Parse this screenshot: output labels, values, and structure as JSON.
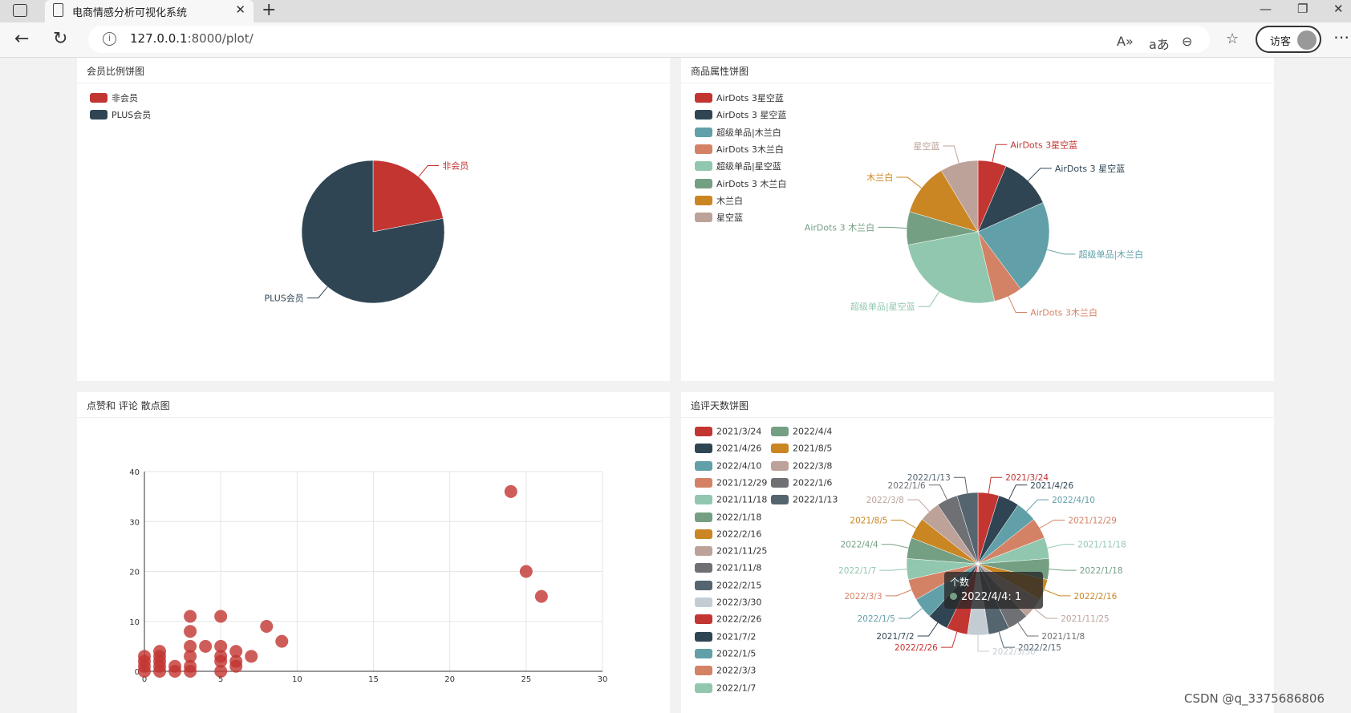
{
  "browser": {
    "tab_title": "电商情感分析可视化系统",
    "url_host": "127.0.0.1",
    "url_rest": ":8000/plot/",
    "visitor_label": "访客",
    "icons": [
      "sidebar-icon",
      "document-icon",
      "close-icon",
      "plus-icon",
      "back-icon",
      "refresh-icon",
      "info-icon",
      "read-aloud-icon",
      "translate-icon",
      "zoom-icon",
      "favorites-icon",
      "more-icon",
      "minimize-icon",
      "restore-icon",
      "window-close-icon"
    ]
  },
  "panels": {
    "member": {
      "title": "会员比例饼图",
      "legend": [
        {
          "label": "非会员",
          "color": "#c23531"
        },
        {
          "label": "PLUS会员",
          "color": "#2f4554"
        }
      ]
    },
    "attr": {
      "title": "商品属性饼图",
      "legend": [
        {
          "label": "AirDots 3星空蓝",
          "color": "#c23531"
        },
        {
          "label": "AirDots 3 星空蓝",
          "color": "#2f4554"
        },
        {
          "label": "超级单品|木兰白",
          "color": "#61a0a8"
        },
        {
          "label": "AirDots 3木兰白",
          "color": "#d48265"
        },
        {
          "label": "超级单品|星空蓝",
          "color": "#91c7ae"
        },
        {
          "label": "AirDots 3 木兰白",
          "color": "#749f83"
        },
        {
          "label": "木兰白",
          "color": "#ca8622"
        },
        {
          "label": "星空蓝",
          "color": "#bda29a"
        }
      ]
    },
    "scatter": {
      "title": "点赞和 评论 散点图"
    },
    "days": {
      "title": "追评天数饼图",
      "legend_col1": [
        {
          "label": "2021/3/24",
          "color": "#c23531"
        },
        {
          "label": "2021/4/26",
          "color": "#2f4554"
        },
        {
          "label": "2022/4/10",
          "color": "#61a0a8"
        },
        {
          "label": "2021/12/29",
          "color": "#d48265"
        },
        {
          "label": "2021/11/18",
          "color": "#91c7ae"
        },
        {
          "label": "2022/1/18",
          "color": "#749f83"
        },
        {
          "label": "2022/2/16",
          "color": "#ca8622"
        },
        {
          "label": "2021/11/25",
          "color": "#bda29a"
        },
        {
          "label": "2021/11/8",
          "color": "#6e7074"
        },
        {
          "label": "2022/2/15",
          "color": "#546570"
        },
        {
          "label": "2022/3/30",
          "color": "#c4ccd3"
        },
        {
          "label": "2022/2/26",
          "color": "#c23531"
        },
        {
          "label": "2021/7/2",
          "color": "#2f4554"
        },
        {
          "label": "2022/1/5",
          "color": "#61a0a8"
        },
        {
          "label": "2022/3/3",
          "color": "#d48265"
        },
        {
          "label": "2022/1/7",
          "color": "#91c7ae"
        }
      ],
      "legend_col2": [
        {
          "label": "2022/4/4",
          "color": "#749f83"
        },
        {
          "label": "2021/8/5",
          "color": "#ca8622"
        },
        {
          "label": "2022/3/8",
          "color": "#bda29a"
        },
        {
          "label": "2022/1/6",
          "color": "#6e7074"
        },
        {
          "label": "2022/1/13",
          "color": "#546570"
        }
      ],
      "tooltip": {
        "series": "个数",
        "text": "2022/4/4: 1",
        "color": "#749f83"
      }
    }
  },
  "watermark": "CSDN @q_3375686806",
  "chart_data": [
    {
      "type": "pie",
      "title": "会员比例饼图",
      "labels": [
        "非会员",
        "PLUS会员"
      ],
      "values": [
        22,
        78
      ],
      "colors": [
        "#c23531",
        "#2f4554"
      ]
    },
    {
      "type": "pie",
      "title": "商品属性饼图",
      "labels": [
        "AirDots 3星空蓝",
        "AirDots 3 星空蓝",
        "超级单品|木兰白",
        "AirDots 3木兰白",
        "超级单品|星空蓝",
        "AirDots 3 木兰白",
        "木兰白",
        "星空蓝"
      ],
      "values": [
        6,
        11,
        20,
        6,
        24,
        7,
        11,
        8
      ],
      "colors": [
        "#c23531",
        "#2f4554",
        "#61a0a8",
        "#d48265",
        "#91c7ae",
        "#749f83",
        "#ca8622",
        "#bda29a"
      ]
    },
    {
      "type": "scatter",
      "title": "点赞和 评论 散点图",
      "xlim": [
        0,
        30
      ],
      "ylim": [
        0,
        40
      ],
      "xticks": [
        0,
        5,
        10,
        15,
        20,
        25,
        30
      ],
      "yticks": [
        0,
        10,
        20,
        30,
        40
      ],
      "color": "#c23531",
      "points": [
        [
          0,
          0
        ],
        [
          0,
          1
        ],
        [
          0,
          2
        ],
        [
          0,
          3
        ],
        [
          1,
          0
        ],
        [
          1,
          1
        ],
        [
          1,
          2
        ],
        [
          1,
          3
        ],
        [
          1,
          4
        ],
        [
          2,
          0
        ],
        [
          2,
          1
        ],
        [
          3,
          0
        ],
        [
          3,
          1
        ],
        [
          3,
          3
        ],
        [
          3,
          5
        ],
        [
          3,
          8
        ],
        [
          3,
          11
        ],
        [
          4,
          5
        ],
        [
          5,
          0
        ],
        [
          5,
          2
        ],
        [
          5,
          3
        ],
        [
          5,
          5
        ],
        [
          5,
          11
        ],
        [
          6,
          1
        ],
        [
          6,
          2
        ],
        [
          6,
          4
        ],
        [
          7,
          3
        ],
        [
          8,
          9
        ],
        [
          9,
          6
        ],
        [
          24,
          36
        ],
        [
          25,
          20
        ],
        [
          26,
          15
        ]
      ]
    },
    {
      "type": "pie",
      "title": "追评天数饼图",
      "labels": [
        "2021/3/24",
        "2021/4/26",
        "2022/4/10",
        "2021/12/29",
        "2021/11/18",
        "2022/1/18",
        "2022/2/16",
        "2021/11/25",
        "2021/11/8",
        "2022/2/15",
        "2022/3/30",
        "2022/2/26",
        "2021/7/2",
        "2022/1/5",
        "2022/3/3",
        "2022/1/7",
        "2022/4/4",
        "2021/8/5",
        "2022/3/8",
        "2022/1/6",
        "2022/1/13"
      ],
      "values": [
        1,
        1,
        1,
        1,
        1,
        1,
        1,
        1,
        1,
        1,
        1,
        1,
        1,
        1,
        1,
        1,
        1,
        1,
        1,
        1,
        1
      ],
      "colors": [
        "#c23531",
        "#2f4554",
        "#61a0a8",
        "#d48265",
        "#91c7ae",
        "#749f83",
        "#ca8622",
        "#bda29a",
        "#6e7074",
        "#546570",
        "#c4ccd3",
        "#c23531",
        "#2f4554",
        "#61a0a8",
        "#d48265",
        "#91c7ae",
        "#749f83",
        "#ca8622",
        "#bda29a",
        "#6e7074",
        "#546570"
      ],
      "label_colors": [
        "#c23531",
        "#2f4554",
        "#61a0a8",
        "#d48265",
        "#91c7ae",
        "#749f83",
        "#ca8622",
        "#bda29a",
        "#6e7074",
        "#546570",
        "#c4ccd3",
        "#c23531",
        "#2f4554",
        "#61a0a8",
        "#d48265",
        "#91c7ae",
        "#749f83",
        "#ca8622",
        "#bda29a",
        "#6e7074",
        "#546570"
      ]
    }
  ]
}
